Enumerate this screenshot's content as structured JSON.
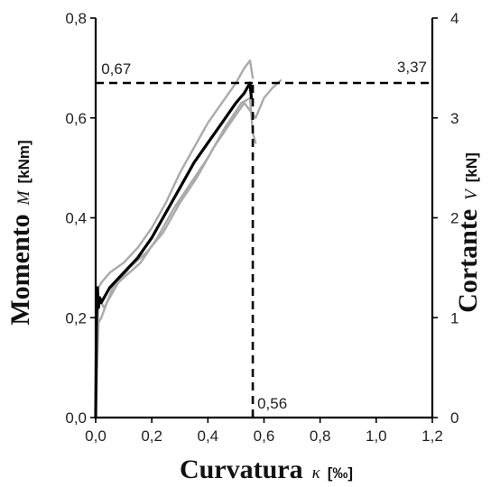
{
  "chart_data": {
    "type": "line",
    "xlabel": {
      "word": "Curvatura",
      "symbol": "κ",
      "unit": "[‰]"
    },
    "ylabel_left": {
      "word": "Momento",
      "symbol": "M",
      "unit": "[kNm]"
    },
    "ylabel_right": {
      "word": "Cortante",
      "symbol": "V",
      "unit": "[kN]"
    },
    "xlim": [
      0,
      1.2
    ],
    "ylim_left": [
      0,
      0.8
    ],
    "ylim_right": [
      0,
      4
    ],
    "x_ticks": [
      "0,0",
      "0,2",
      "0,4",
      "0,6",
      "0,8",
      "1,0",
      "1,2"
    ],
    "y_left_ticks": [
      "0,0",
      "0,2",
      "0,4",
      "0,6",
      "0,8"
    ],
    "y_right_ticks": [
      "0",
      "1",
      "2",
      "3",
      "4"
    ],
    "grid": false,
    "series": [
      {
        "color": "#aaaaaa",
        "x": [
          0.0,
          0.005,
          0.01,
          0.02,
          0.05,
          0.1,
          0.15,
          0.2,
          0.25,
          0.3,
          0.35,
          0.4,
          0.45,
          0.5,
          0.53,
          0.55,
          0.56
        ],
        "y": [
          0.0,
          0.22,
          0.26,
          0.27,
          0.29,
          0.31,
          0.34,
          0.38,
          0.43,
          0.49,
          0.54,
          0.59,
          0.63,
          0.67,
          0.7,
          0.715,
          0.68
        ]
      },
      {
        "color": "#aaaaaa",
        "x": [
          0.0,
          0.01,
          0.03,
          0.08,
          0.12,
          0.18,
          0.24,
          0.3,
          0.36,
          0.42,
          0.48,
          0.53,
          0.57,
          0.6,
          0.63,
          0.66
        ],
        "y": [
          0.0,
          0.24,
          0.22,
          0.27,
          0.3,
          0.33,
          0.37,
          0.43,
          0.48,
          0.54,
          0.59,
          0.63,
          0.6,
          0.64,
          0.66,
          0.675
        ]
      },
      {
        "color": "#aaaaaa",
        "x": [
          0.0,
          0.01,
          0.02,
          0.06,
          0.1,
          0.16,
          0.22,
          0.28,
          0.34,
          0.4,
          0.46,
          0.52,
          0.55,
          0.56,
          0.57
        ],
        "y": [
          0.0,
          0.19,
          0.2,
          0.26,
          0.28,
          0.31,
          0.36,
          0.42,
          0.47,
          0.52,
          0.58,
          0.63,
          0.64,
          0.57,
          0.55
        ]
      },
      {
        "color": "#000000",
        "x": [
          0.0,
          0.003,
          0.006,
          0.01,
          0.015,
          0.02,
          0.05,
          0.1,
          0.15,
          0.2,
          0.25,
          0.3,
          0.35,
          0.4,
          0.45,
          0.5,
          0.53,
          0.55,
          0.555
        ],
        "y": [
          0.0,
          0.2,
          0.26,
          0.22,
          0.24,
          0.23,
          0.26,
          0.29,
          0.32,
          0.36,
          0.41,
          0.46,
          0.51,
          0.55,
          0.59,
          0.63,
          0.65,
          0.67,
          0.64
        ]
      }
    ],
    "reference_lines": [
      {
        "label": "0,67",
        "y": 0.67,
        "x_from": 0,
        "x_to": 1.2
      },
      {
        "label": "3,37",
        "y_right": 3.37
      },
      {
        "label": "0,56",
        "x": 0.56,
        "y_from": 0,
        "y_to": 0.67
      }
    ]
  }
}
